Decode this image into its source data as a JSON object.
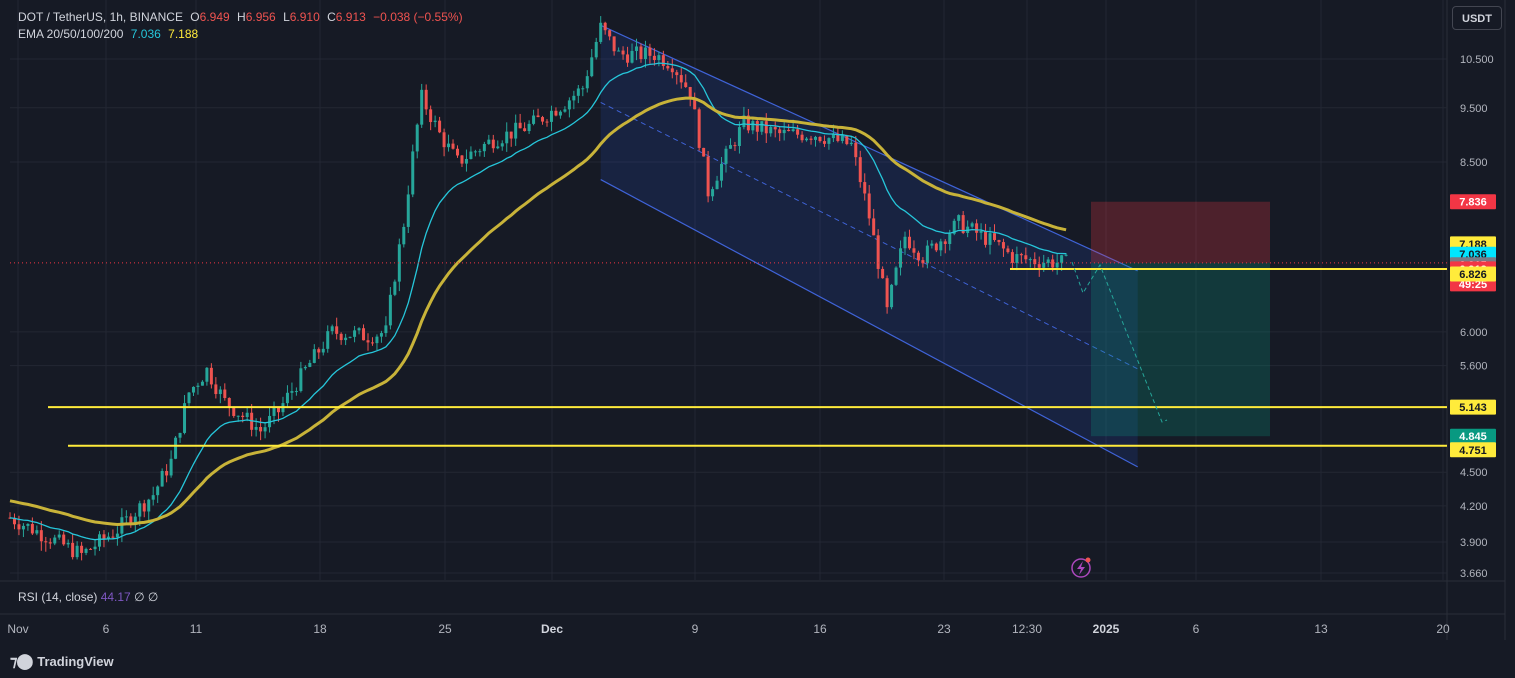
{
  "header": {
    "symbol": "DOT / TetherUS, 1h, BINANCE",
    "o_label": "O",
    "o_value": "6.949",
    "h_label": "H",
    "h_value": "6.956",
    "l_label": "L",
    "l_value": "6.910",
    "c_label": "C",
    "c_value": "6.913",
    "change": "−0.038 (−0.55%)",
    "ema_label": "EMA 20/50/100/200",
    "ema_val1": "7.036",
    "ema_val2": "7.188"
  },
  "currency_button": "USDT",
  "rsi_legend": {
    "label": "RSI (14, close)",
    "value": "44.17",
    "extra1": "∅",
    "extra2": "∅"
  },
  "branding": "TradingView",
  "colors": {
    "up": "#26a69a",
    "down": "#ef5350",
    "ema_fast": "#26c6da",
    "ema_slow": "#c8b339",
    "hline": "#ffeb3b",
    "channel": "#3f63d8"
  },
  "chart_data": {
    "type": "candlestick",
    "title": "DOT / TetherUS, 1h, BINANCE",
    "x_ticks": [
      "Nov",
      "6",
      "11",
      "18",
      "25",
      "Dec",
      "9",
      "16",
      "23",
      "12:30",
      "2025",
      "6",
      "13",
      "20"
    ],
    "y_ticks": [
      "10.500",
      "9.500",
      "8.500",
      "6.000",
      "5.600",
      "4.500",
      "4.200",
      "3.900",
      "3.660"
    ],
    "ylim": [
      3.62,
      11.3
    ],
    "scale": "log",
    "series": [
      {
        "name": "Price path (approx. close)",
        "points": [
          [
            "Nov 1",
            4.1
          ],
          [
            "Nov 3",
            3.95
          ],
          [
            "Nov 5",
            3.8
          ],
          [
            "Nov 7",
            4.0
          ],
          [
            "Nov 9",
            4.3
          ],
          [
            "Nov 10",
            4.6
          ],
          [
            "Nov 11",
            5.3
          ],
          [
            "Nov 12",
            5.55
          ],
          [
            "Nov 13",
            5.2
          ],
          [
            "Nov 14",
            5.05
          ],
          [
            "Nov 15",
            4.9
          ],
          [
            "Nov 16",
            5.1
          ],
          [
            "Nov 18",
            5.7
          ],
          [
            "Nov 19",
            6.0
          ],
          [
            "Nov 21",
            5.95
          ],
          [
            "Nov 22",
            6.0
          ],
          [
            "Nov 23",
            7.5
          ],
          [
            "Nov 24",
            9.7
          ],
          [
            "Nov 25",
            9.0
          ],
          [
            "Nov 26",
            8.5
          ],
          [
            "Nov 28",
            8.9
          ],
          [
            "Nov 30",
            9.15
          ],
          [
            "Dec 2",
            9.6
          ],
          [
            "Dec 3",
            9.9
          ],
          [
            "Dec 4",
            11.2
          ],
          [
            "Dec 5",
            10.6
          ],
          [
            "Dec 7",
            10.6
          ],
          [
            "Dec 8",
            10.4
          ],
          [
            "Dec 9",
            9.8
          ],
          [
            "Dec 10",
            8.0
          ],
          [
            "Dec 11",
            8.6
          ],
          [
            "Dec 12",
            9.2
          ],
          [
            "Dec 14",
            9.0
          ],
          [
            "Dec 16",
            9.0
          ],
          [
            "Dec 18",
            8.8
          ],
          [
            "Dec 19",
            7.6
          ],
          [
            "Dec 20",
            6.25
          ],
          [
            "Dec 21",
            7.3
          ],
          [
            "Dec 22",
            7.0
          ],
          [
            "Dec 24",
            7.5
          ],
          [
            "Dec 26",
            7.2
          ],
          [
            "Dec 27",
            7.0
          ],
          [
            "Dec 28",
            6.95
          ],
          [
            "Dec 30",
            6.913
          ]
        ]
      }
    ],
    "ema_fast_value": 7.036,
    "ema_slow_value": 7.188,
    "horizontal_levels": [
      6.826,
      5.143,
      4.751
    ],
    "channel": {
      "upper": [
        [
          "Dec 4",
          11.25
        ],
        [
          "Jan 3",
          6.8
        ]
      ],
      "lower": [
        [
          "Dec 4",
          8.2
        ],
        [
          "Jan 3",
          4.55
        ]
      ]
    },
    "position_tool": {
      "entry": 6.913,
      "stop": 7.836,
      "target": 4.845
    },
    "price_labels": [
      {
        "value": "7.836",
        "bg": "#f23645",
        "fg": "#ffffff"
      },
      {
        "value": "7.188",
        "bg": "#ffeb3b",
        "fg": "#131722"
      },
      {
        "value": "7.036",
        "bg": "#00e5ff",
        "fg": "#131722"
      },
      {
        "value": "6.915",
        "bg": "#787b86",
        "fg": "#ffffff"
      },
      {
        "value": "6.913",
        "bg": "#f23645",
        "fg": "#ffffff"
      },
      {
        "value": "49:25",
        "bg": "#f23645",
        "fg": "#ffffff"
      },
      {
        "value": "6.826",
        "bg": "#ffeb3b",
        "fg": "#131722"
      },
      {
        "value": "5.143",
        "bg": "#ffeb3b",
        "fg": "#131722"
      },
      {
        "value": "4.845",
        "bg": "#089981",
        "fg": "#ffffff"
      },
      {
        "value": "4.751",
        "bg": "#ffeb3b",
        "fg": "#131722"
      }
    ]
  }
}
